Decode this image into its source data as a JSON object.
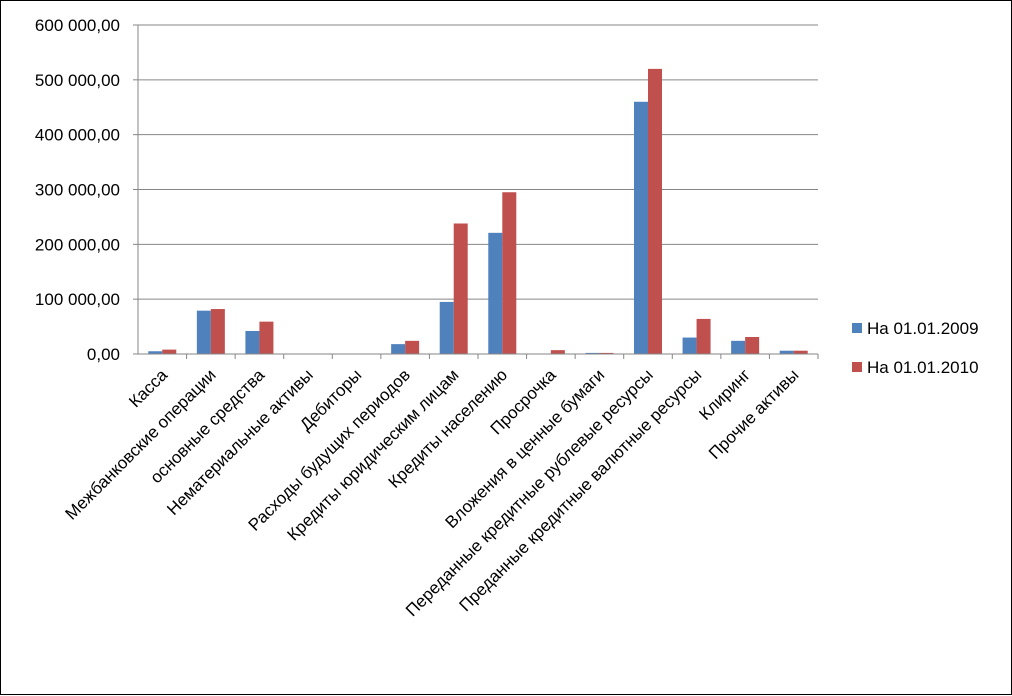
{
  "chart_data": {
    "type": "bar",
    "categories": [
      "Касса",
      "Межбанковские операции",
      "основные средства",
      "Нематериальные активы",
      "Дебиторы",
      "Расходы будущих периодов",
      "Кредиты юридическим лицам",
      "Кредиты населению",
      "Просрочка",
      "Вложения в ценные бумаги",
      "Переданные кредитные рублевые ресурсы",
      "Преданные кредитные валютные ресурсы",
      "Клиринг",
      "Прочие активы"
    ],
    "series": [
      {
        "name": "На 01.01.2009",
        "color": "#4F81BD",
        "values": [
          5000,
          79000,
          42000,
          0,
          0,
          18000,
          95000,
          221000,
          0,
          2000,
          460000,
          30000,
          24000,
          6000
        ]
      },
      {
        "name": "На 01.01.2010",
        "color": "#C0504D",
        "values": [
          8000,
          82000,
          59000,
          0,
          0,
          24000,
          238000,
          295000,
          7000,
          2000,
          520000,
          64000,
          31000,
          6000
        ]
      }
    ],
    "y_ticks": [
      "0,00",
      "100 000,00",
      "200 000,00",
      "300 000,00",
      "400 000,00",
      "500 000,00",
      "600 000,00"
    ],
    "ylim": [
      0,
      600000
    ],
    "grid": true,
    "legend_position": "right"
  }
}
